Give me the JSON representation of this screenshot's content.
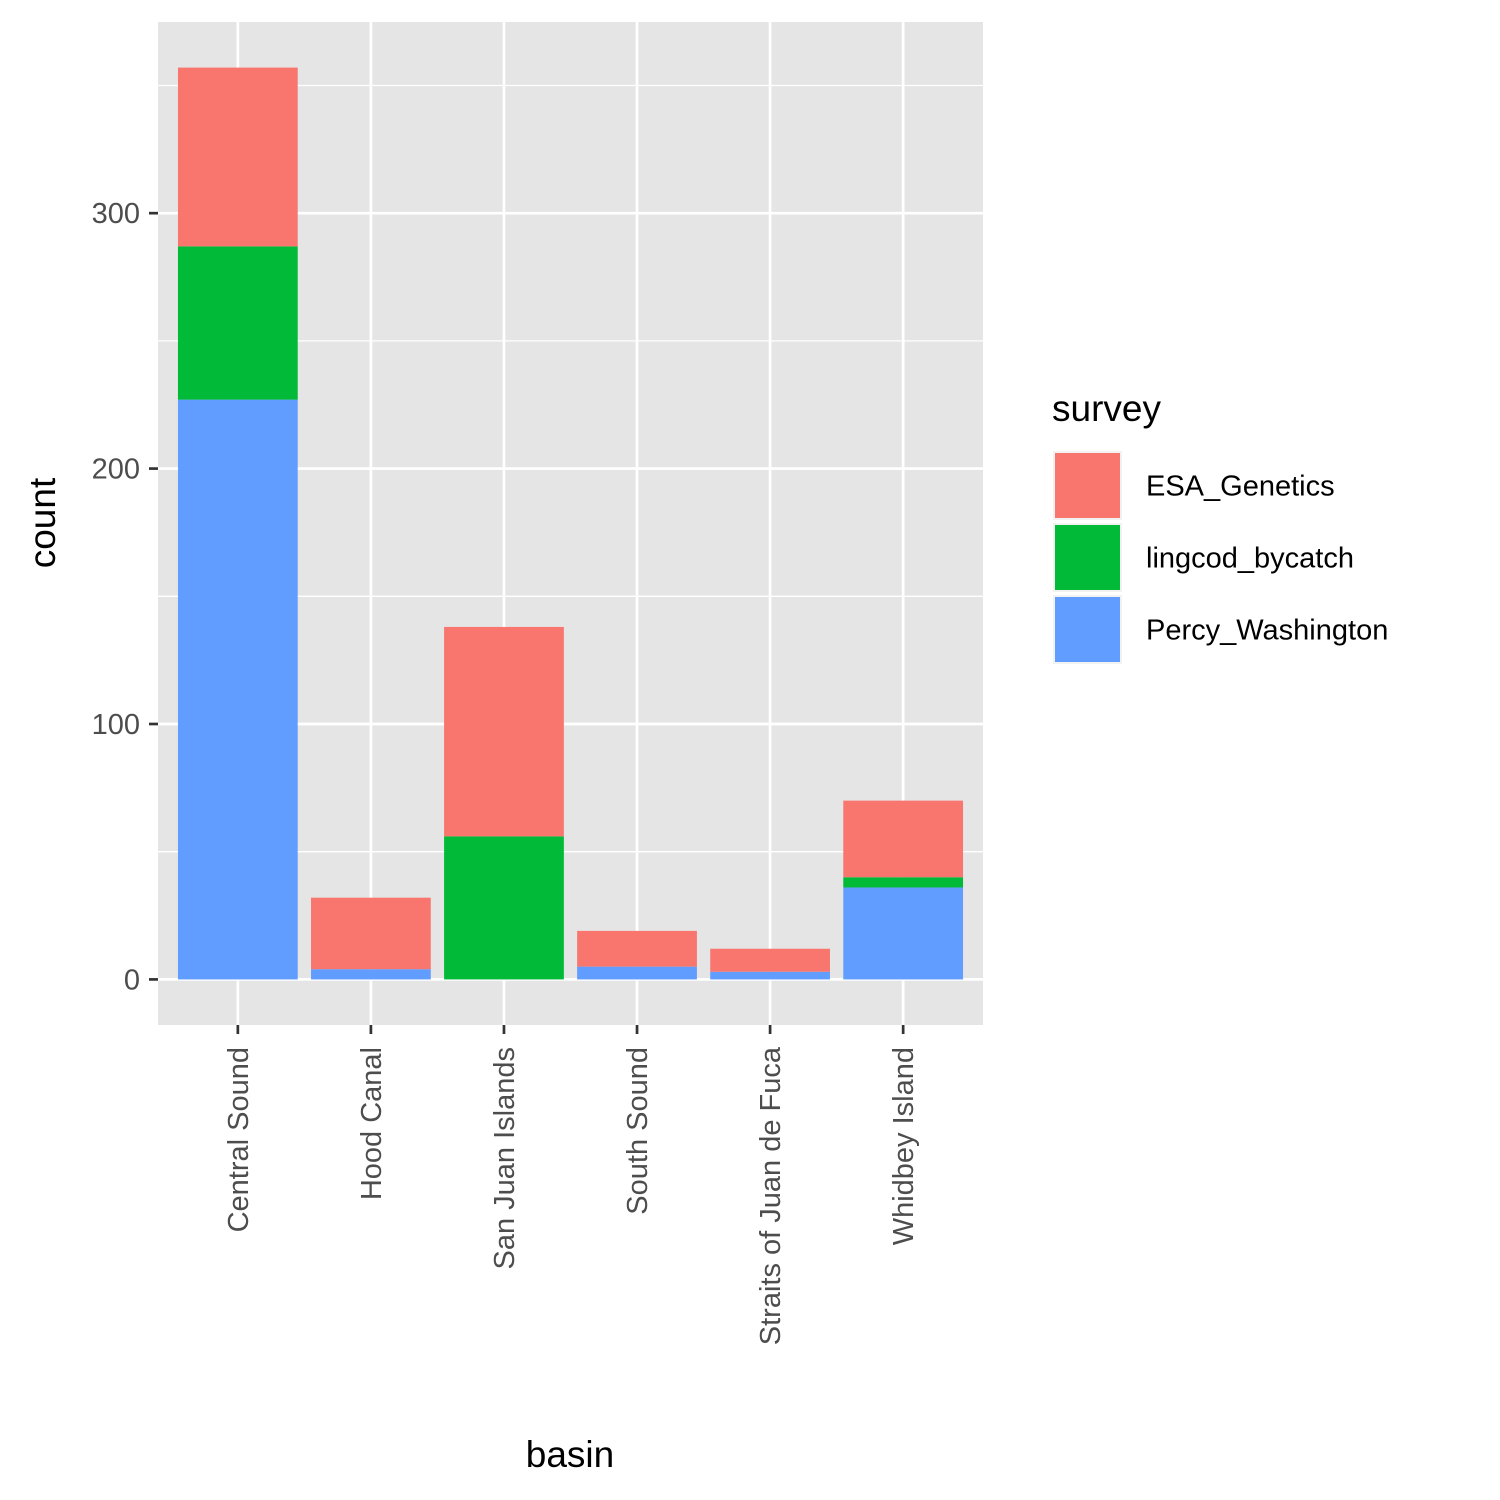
{
  "chart_data": {
    "type": "bar",
    "stacked": true,
    "xlabel": "basin",
    "ylabel": "count",
    "categories": [
      "Central Sound",
      "Hood Canal",
      "San Juan Islands",
      "South Sound",
      "Straits of Juan de Fuca",
      "Whidbey Island"
    ],
    "series": [
      {
        "name": "Percy_Washington",
        "color": "#619CFF",
        "values": [
          227,
          4,
          0,
          5,
          3,
          36
        ]
      },
      {
        "name": "lingcod_bycatch",
        "color": "#00BA38",
        "values": [
          60,
          0,
          56,
          0,
          0,
          4
        ]
      },
      {
        "name": "ESA_Genetics",
        "color": "#F8766D",
        "values": [
          70,
          28,
          82,
          14,
          9,
          30
        ]
      }
    ],
    "ylim": [
      -17.85,
      374.85
    ],
    "yticks": [
      0,
      100,
      200,
      300
    ],
    "ytick_labels": [
      "0",
      "100",
      "200",
      "300"
    ],
    "grid": true,
    "legend": {
      "title": "survey",
      "position": "right",
      "items": [
        "ESA_Genetics",
        "lingcod_bycatch",
        "Percy_Washington"
      ]
    },
    "panel_background": "#E5E5E5",
    "grid_color": "#FFFFFF"
  }
}
